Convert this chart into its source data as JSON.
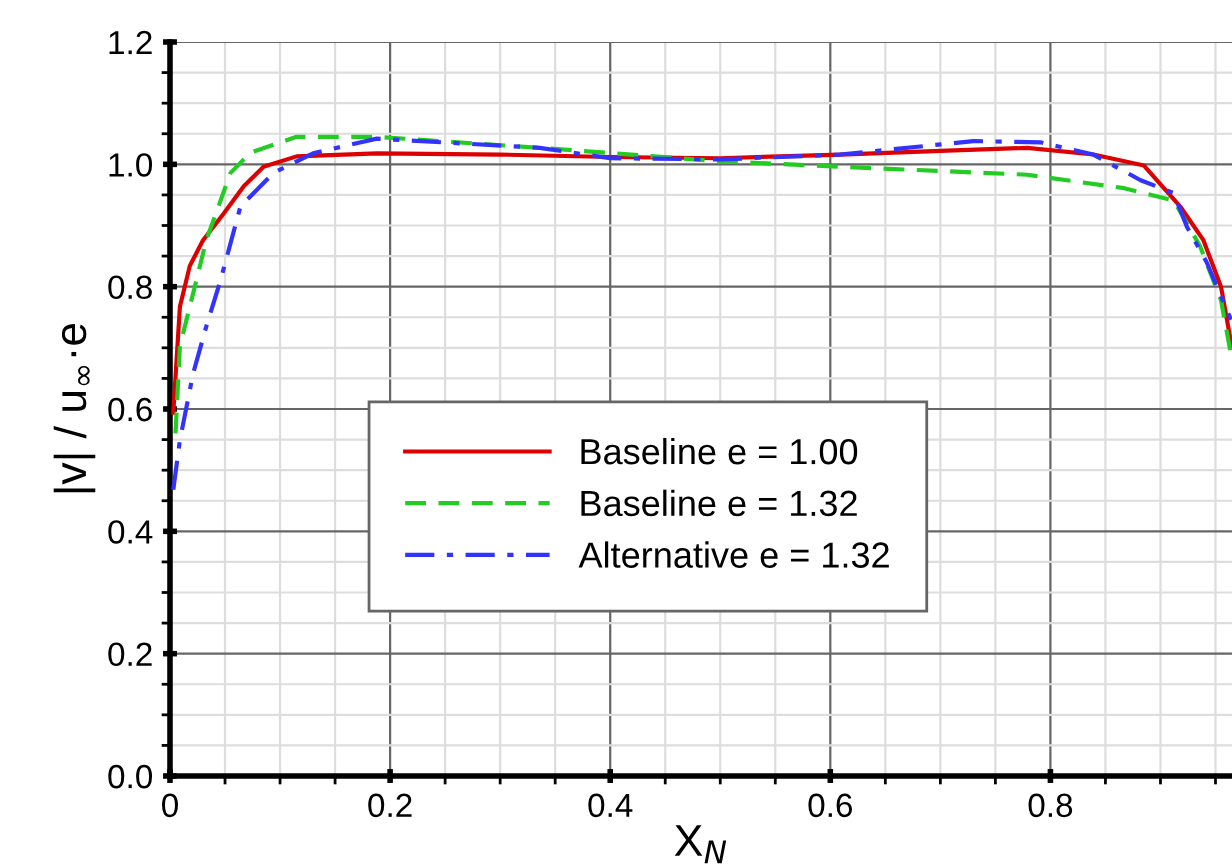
{
  "chart_data": {
    "type": "line",
    "xlabel": "X$_{N}$",
    "ylabel": "|v| / u$_{∞}$·e",
    "xlim": [
      0,
      0.965
    ],
    "ylim": [
      0,
      1.2
    ],
    "xticks": [
      0,
      0.2,
      0.4,
      0.6,
      0.8
    ],
    "yticks": [
      {
        "value": 0,
        "label": "0.0"
      },
      0.2,
      0.4,
      0.6,
      0.8,
      {
        "value": 1,
        "label": "1.0"
      },
      1.2
    ],
    "grid": true,
    "legend": "bottom",
    "marker": "none",
    "series": [
      {
        "name": "Baseline e = 1.00",
        "color": "#dd0000",
        "line_style": "solid",
        "x": [
          0.003,
          0.009,
          0.018,
          0.03,
          0.049,
          0.067,
          0.085,
          0.115,
          0.188,
          0.3,
          0.4,
          0.5,
          0.609,
          0.7,
          0.779,
          0.839,
          0.885,
          0.918,
          0.939,
          0.955,
          0.965
        ],
        "values": [
          0.594,
          0.767,
          0.834,
          0.876,
          0.92,
          0.964,
          0.996,
          1.013,
          1.018,
          1.016,
          1.012,
          1.01,
          1.016,
          1.022,
          1.027,
          1.016,
          0.998,
          0.931,
          0.876,
          0.8,
          0.7
        ]
      },
      {
        "name": "Baseline e = 1.32",
        "color": "#22cc22",
        "line_style": "dashed",
        "x": [
          0.005,
          0.009,
          0.021,
          0.033,
          0.055,
          0.073,
          0.115,
          0.188,
          0.336,
          0.5,
          0.609,
          0.779,
          0.867,
          0.912,
          0.936,
          0.955,
          0.965
        ],
        "values": [
          0.56,
          0.703,
          0.789,
          0.876,
          0.986,
          1.019,
          1.045,
          1.045,
          1.027,
          1.005,
          0.996,
          0.983,
          0.961,
          0.941,
          0.866,
          0.778,
          0.68
        ]
      },
      {
        "name": "Alternative e = 1.32",
        "color": "#3333ff",
        "line_style": "dashdot",
        "x": [
          0.003,
          0.009,
          0.021,
          0.033,
          0.046,
          0.064,
          0.094,
          0.13,
          0.188,
          0.336,
          0.4,
          0.5,
          0.609,
          0.73,
          0.791,
          0.839,
          0.882,
          0.912,
          0.924,
          0.942,
          0.964
        ],
        "values": [
          0.468,
          0.549,
          0.658,
          0.735,
          0.811,
          0.931,
          0.986,
          1.018,
          1.042,
          1.027,
          1.01,
          1.008,
          1.016,
          1.038,
          1.036,
          1.016,
          0.974,
          0.953,
          0.898,
          0.84,
          0.746
        ]
      }
    ]
  }
}
